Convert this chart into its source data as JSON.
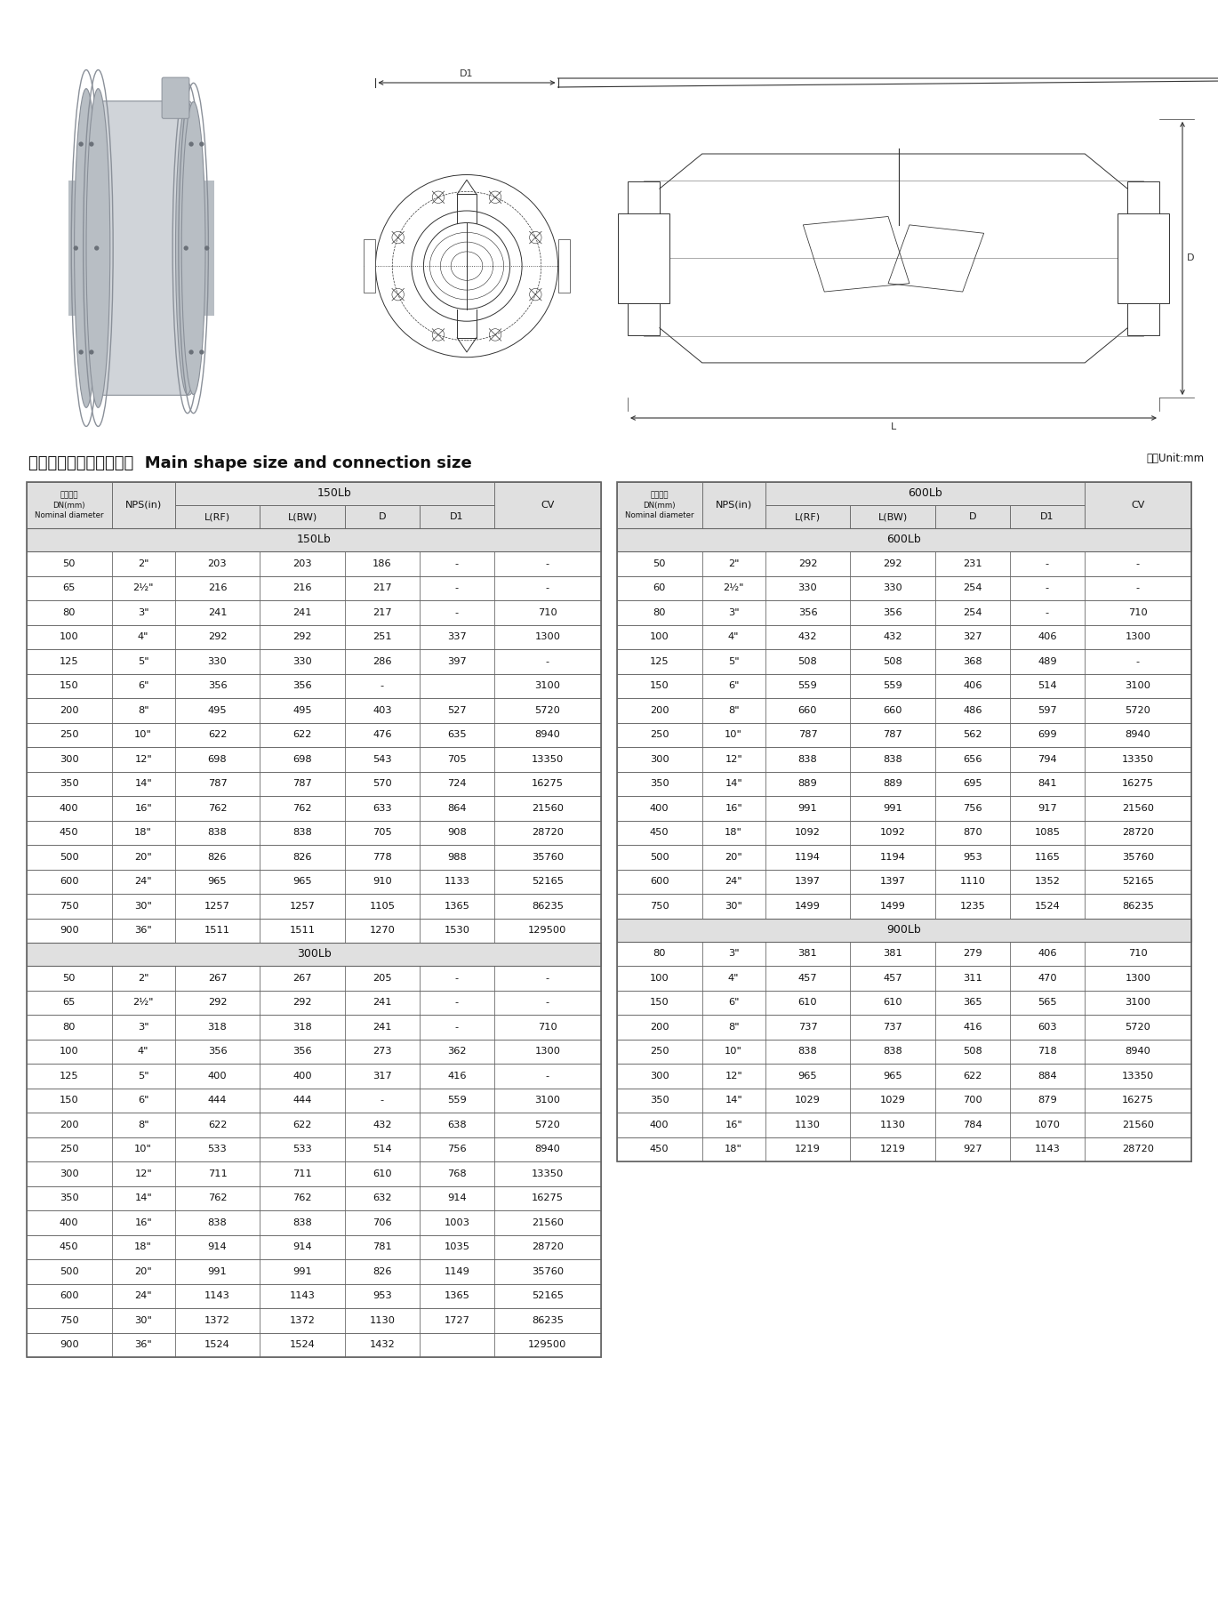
{
  "title_chinese": "主要外形尺寸及连接尺寸",
  "title_english": "Main shape size and connection size",
  "unit_text": "单位Unit:mm",
  "bg_color": "#ffffff",
  "header_bg": "#e0e0e0",
  "border_color": "#666666",
  "text_color": "#111111",
  "table_left": {
    "sections": [
      {
        "section_title": "150Lb",
        "rows": [
          [
            "50",
            "2\"",
            "203",
            "203",
            "186",
            "-",
            "-"
          ],
          [
            "65",
            "2½\"",
            "216",
            "216",
            "217",
            "-",
            "-"
          ],
          [
            "80",
            "3\"",
            "241",
            "241",
            "217",
            "-",
            "710"
          ],
          [
            "100",
            "4\"",
            "292",
            "292",
            "251",
            "337",
            "1300"
          ],
          [
            "125",
            "5\"",
            "330",
            "330",
            "286",
            "397",
            "-"
          ],
          [
            "150",
            "6\"",
            "356",
            "356",
            "-",
            "",
            "3100"
          ],
          [
            "200",
            "8\"",
            "495",
            "495",
            "403",
            "527",
            "5720"
          ],
          [
            "250",
            "10\"",
            "622",
            "622",
            "476",
            "635",
            "8940"
          ],
          [
            "300",
            "12\"",
            "698",
            "698",
            "543",
            "705",
            "13350"
          ],
          [
            "350",
            "14\"",
            "787",
            "787",
            "570",
            "724",
            "16275"
          ],
          [
            "400",
            "16\"",
            "762",
            "762",
            "633",
            "864",
            "21560"
          ],
          [
            "450",
            "18\"",
            "838",
            "838",
            "705",
            "908",
            "28720"
          ],
          [
            "500",
            "20\"",
            "826",
            "826",
            "778",
            "988",
            "35760"
          ],
          [
            "600",
            "24\"",
            "965",
            "965",
            "910",
            "1133",
            "52165"
          ],
          [
            "750",
            "30\"",
            "1257",
            "1257",
            "1105",
            "1365",
            "86235"
          ],
          [
            "900",
            "36\"",
            "1511",
            "1511",
            "1270",
            "1530",
            "129500"
          ]
        ]
      },
      {
        "section_title": "300Lb",
        "rows": [
          [
            "50",
            "2\"",
            "267",
            "267",
            "205",
            "-",
            "-"
          ],
          [
            "65",
            "2½\"",
            "292",
            "292",
            "241",
            "-",
            "-"
          ],
          [
            "80",
            "3\"",
            "318",
            "318",
            "241",
            "-",
            "710"
          ],
          [
            "100",
            "4\"",
            "356",
            "356",
            "273",
            "362",
            "1300"
          ],
          [
            "125",
            "5\"",
            "400",
            "400",
            "317",
            "416",
            "-"
          ],
          [
            "150",
            "6\"",
            "444",
            "444",
            "-",
            "559",
            "3100"
          ],
          [
            "200",
            "8\"",
            "622",
            "622",
            "432",
            "638",
            "5720"
          ],
          [
            "250",
            "10\"",
            "533",
            "533",
            "514",
            "756",
            "8940"
          ],
          [
            "300",
            "12\"",
            "711",
            "711",
            "610",
            "768",
            "13350"
          ],
          [
            "350",
            "14\"",
            "762",
            "762",
            "632",
            "914",
            "16275"
          ],
          [
            "400",
            "16\"",
            "838",
            "838",
            "706",
            "1003",
            "21560"
          ],
          [
            "450",
            "18\"",
            "914",
            "914",
            "781",
            "1035",
            "28720"
          ],
          [
            "500",
            "20\"",
            "991",
            "991",
            "826",
            "1149",
            "35760"
          ],
          [
            "600",
            "24\"",
            "1143",
            "1143",
            "953",
            "1365",
            "52165"
          ],
          [
            "750",
            "30\"",
            "1372",
            "1372",
            "1130",
            "1727",
            "86235"
          ],
          [
            "900",
            "36\"",
            "1524",
            "1524",
            "1432",
            "",
            "129500"
          ]
        ]
      }
    ]
  },
  "table_right": {
    "sections": [
      {
        "section_title": "600Lb",
        "rows": [
          [
            "50",
            "2\"",
            "292",
            "292",
            "231",
            "-",
            "-"
          ],
          [
            "60",
            "2½\"",
            "330",
            "330",
            "254",
            "-",
            "-"
          ],
          [
            "80",
            "3\"",
            "356",
            "356",
            "254",
            "-",
            "710"
          ],
          [
            "100",
            "4\"",
            "432",
            "432",
            "327",
            "406",
            "1300"
          ],
          [
            "125",
            "5\"",
            "508",
            "508",
            "368",
            "489",
            "-"
          ],
          [
            "150",
            "6\"",
            "559",
            "559",
            "406",
            "514",
            "3100"
          ],
          [
            "200",
            "8\"",
            "660",
            "660",
            "486",
            "597",
            "5720"
          ],
          [
            "250",
            "10\"",
            "787",
            "787",
            "562",
            "699",
            "8940"
          ],
          [
            "300",
            "12\"",
            "838",
            "838",
            "656",
            "794",
            "13350"
          ],
          [
            "350",
            "14\"",
            "889",
            "889",
            "695",
            "841",
            "16275"
          ],
          [
            "400",
            "16\"",
            "991",
            "991",
            "756",
            "917",
            "21560"
          ],
          [
            "450",
            "18\"",
            "1092",
            "1092",
            "870",
            "1085",
            "28720"
          ],
          [
            "500",
            "20\"",
            "1194",
            "1194",
            "953",
            "1165",
            "35760"
          ],
          [
            "600",
            "24\"",
            "1397",
            "1397",
            "1110",
            "1352",
            "52165"
          ],
          [
            "750",
            "30\"",
            "1499",
            "1499",
            "1235",
            "1524",
            "86235"
          ]
        ]
      },
      {
        "section_title": "900Lb",
        "rows": [
          [
            "80",
            "3\"",
            "381",
            "381",
            "279",
            "406",
            "710"
          ],
          [
            "100",
            "4\"",
            "457",
            "457",
            "311",
            "470",
            "1300"
          ],
          [
            "150",
            "6\"",
            "610",
            "610",
            "365",
            "565",
            "3100"
          ],
          [
            "200",
            "8\"",
            "737",
            "737",
            "416",
            "603",
            "5720"
          ],
          [
            "250",
            "10\"",
            "838",
            "838",
            "508",
            "718",
            "8940"
          ],
          [
            "300",
            "12\"",
            "965",
            "965",
            "622",
            "884",
            "13350"
          ],
          [
            "350",
            "14\"",
            "1029",
            "1029",
            "700",
            "879",
            "16275"
          ],
          [
            "400",
            "16\"",
            "1130",
            "1130",
            "784",
            "1070",
            "21560"
          ],
          [
            "450",
            "18\"",
            "1219",
            "1219",
            "927",
            "1143",
            "28720"
          ]
        ]
      }
    ]
  }
}
